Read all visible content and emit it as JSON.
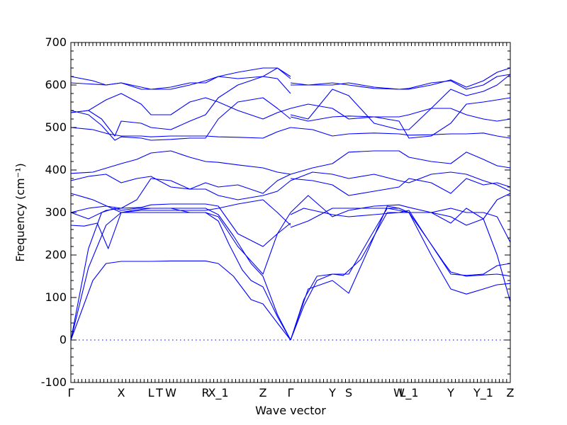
{
  "chart_data": {
    "type": "line",
    "xlabel": "Wave vector",
    "ylabel": "Frequency (cm⁻¹)",
    "ylim": [
      -100,
      700
    ],
    "yticks": [
      -100,
      0,
      100,
      200,
      300,
      400,
      500,
      600,
      700
    ],
    "xlim": [
      0,
      1
    ],
    "grid": false,
    "legend": "none",
    "line_color": "#0000ff",
    "zero_line": {
      "y": 0,
      "style": "dotted"
    },
    "high_symmetry_points": [
      {
        "label": "Γ",
        "x": 0.0
      },
      {
        "label": "X",
        "x": 0.1145
      },
      {
        "label": "L",
        "x": 0.1823
      },
      {
        "label": "T",
        "x": 0.2016
      },
      {
        "label": "W",
        "x": 0.2274
      },
      {
        "label": "R",
        "x": 0.3065
      },
      {
        "label": "X_1",
        "x": 0.3355
      },
      {
        "label": "Z",
        "x": 0.4371
      },
      {
        "label": "Γ",
        "x": 0.5
      },
      {
        "label": "Y",
        "x": 0.5952
      },
      {
        "label": "S",
        "x": 0.6323
      },
      {
        "label": "W",
        "x": 0.7468
      },
      {
        "label": "L_1",
        "x": 0.7694
      },
      {
        "label": "Y",
        "x": 0.8645
      },
      {
        "label": "Y_1",
        "x": 0.9387
      },
      {
        "label": "Z",
        "x": 1.0
      }
    ],
    "series": [
      {
        "x": [
          0,
          0.05,
          0.08,
          0.1145,
          0.15,
          0.1823,
          0.2274,
          0.3065,
          0.3355,
          0.37,
          0.41,
          0.4371,
          0.47,
          0.5
        ],
        "y": [
          0,
          140,
          180,
          185,
          185,
          185,
          186,
          186,
          180,
          150,
          95,
          85,
          40,
          0
        ]
      },
      {
        "x": [
          0,
          0.04,
          0.08,
          0.1145,
          0.16,
          0.1823,
          0.2274,
          0.2707,
          0.3065,
          0.3355,
          0.36,
          0.39,
          0.41,
          0.4371,
          0.47,
          0.5
        ],
        "y": [
          0,
          170,
          270,
          300,
          300,
          300,
          300,
          300,
          300,
          280,
          225,
          165,
          140,
          125,
          55,
          0
        ]
      },
      {
        "x": [
          0,
          0.04,
          0.07,
          0.1,
          0.1145,
          0.15,
          0.1823,
          0.2274,
          0.2707,
          0.3065,
          0.3355,
          0.37,
          0.41,
          0.4371,
          0.47,
          0.5
        ],
        "y": [
          0,
          215,
          300,
          310,
          305,
          310,
          310,
          310,
          310,
          310,
          295,
          245,
          180,
          150,
          60,
          0
        ]
      },
      {
        "x": [
          0.5,
          0.53,
          0.56,
          0.5952,
          0.6323,
          0.68,
          0.72,
          0.7468,
          0.7694,
          0.81,
          0.8645,
          0.9,
          0.9387,
          0.97,
          1.0
        ],
        "y": [
          0,
          95,
          150,
          155,
          155,
          240,
          310,
          305,
          300,
          240,
          155,
          152,
          155,
          175,
          180
        ]
      },
      {
        "x": [
          0.5,
          0.54,
          0.5952,
          0.6323,
          0.68,
          0.72,
          0.7468,
          0.7694,
          0.82,
          0.8645,
          0.9,
          0.9387,
          0.97,
          1.0
        ],
        "y": [
          0,
          120,
          140,
          110,
          220,
          315,
          310,
          300,
          200,
          120,
          108,
          120,
          130,
          133
        ]
      },
      {
        "x": [
          0.5,
          0.53,
          0.56,
          0.5952,
          0.62,
          0.66,
          0.72,
          0.7468,
          0.7694,
          0.81,
          0.85,
          0.8645,
          0.9,
          0.9387,
          0.97,
          0.99,
          1.0
        ],
        "y": [
          0,
          80,
          140,
          155,
          152,
          190,
          300,
          300,
          305,
          240,
          180,
          160,
          150,
          153,
          155,
          152,
          150
        ]
      },
      {
        "x": [
          0,
          0.03,
          0.06,
          0.085,
          0.1145,
          0.16,
          0.1823,
          0.2274,
          0.2707,
          0.3065,
          0.3355,
          0.38,
          0.4371,
          0.47,
          0.5
        ],
        "y": [
          270,
          268,
          275,
          215,
          300,
          305,
          305,
          305,
          305,
          305,
          310,
          320,
          330,
          300,
          270
        ]
      },
      {
        "x": [
          0,
          0.04,
          0.08,
          0.1145,
          0.16,
          0.1823,
          0.2274,
          0.2707,
          0.3065,
          0.3355,
          0.38,
          0.4371,
          0.47,
          0.5
        ],
        "y": [
          300,
          285,
          305,
          310,
          312,
          318,
          320,
          320,
          320,
          315,
          250,
          220,
          250,
          275
        ]
      },
      {
        "x": [
          0,
          0.05,
          0.1145,
          0.14,
          0.1823,
          0.2274,
          0.2707,
          0.3065,
          0.3355,
          0.38,
          0.4371,
          0.47,
          0.5
        ],
        "y": [
          345,
          330,
          300,
          305,
          310,
          310,
          300,
          300,
          290,
          220,
          155,
          250,
          300
        ]
      },
      {
        "x": [
          0.5,
          0.54,
          0.5952,
          0.6323,
          0.69,
          0.7468,
          0.7694,
          0.82,
          0.8645,
          0.9,
          0.9387,
          0.97,
          1.0
        ],
        "y": [
          265,
          280,
          310,
          310,
          310,
          310,
          300,
          300,
          275,
          310,
          285,
          200,
          90
        ]
      },
      {
        "x": [
          0.5,
          0.54,
          0.5952,
          0.6323,
          0.69,
          0.7468,
          0.7694,
          0.82,
          0.8645,
          0.9,
          0.9387,
          0.97,
          1.0
        ],
        "y": [
          300,
          340,
          290,
          305,
          315,
          318,
          312,
          300,
          310,
          300,
          300,
          290,
          230
        ]
      },
      {
        "x": [
          0.5,
          0.53,
          0.5952,
          0.6323,
          0.69,
          0.7468,
          0.7694,
          0.82,
          0.8645,
          0.9,
          0.9387,
          0.97,
          1.0
        ],
        "y": [
          295,
          310,
          295,
          290,
          295,
          300,
          300,
          300,
          290,
          270,
          285,
          330,
          345
        ]
      },
      {
        "x": [
          0,
          0.04,
          0.08,
          0.1145,
          0.15,
          0.1823,
          0.2274,
          0.2707,
          0.3065,
          0.3355,
          0.38,
          0.4371,
          0.47,
          0.5
        ],
        "y": [
          375,
          385,
          390,
          370,
          380,
          385,
          360,
          355,
          355,
          340,
          330,
          340,
          350,
          375
        ]
      },
      {
        "x": [
          0,
          0.04,
          0.08,
          0.1145,
          0.15,
          0.1823,
          0.2274,
          0.2707,
          0.3065,
          0.3355,
          0.38,
          0.4371,
          0.47,
          0.5
        ],
        "y": [
          300,
          310,
          315,
          310,
          330,
          380,
          375,
          355,
          370,
          360,
          365,
          345,
          375,
          390
        ]
      },
      {
        "x": [
          0.5,
          0.55,
          0.5952,
          0.6323,
          0.69,
          0.7468,
          0.7694,
          0.82,
          0.8645,
          0.9,
          0.9387,
          0.97,
          1.0
        ],
        "y": [
          375,
          395,
          390,
          380,
          390,
          375,
          370,
          390,
          395,
          390,
          375,
          365,
          350
        ]
      },
      {
        "x": [
          0.5,
          0.55,
          0.5952,
          0.6323,
          0.69,
          0.7468,
          0.7694,
          0.82,
          0.8645,
          0.9,
          0.9387,
          0.97,
          1.0
        ],
        "y": [
          380,
          375,
          365,
          340,
          350,
          360,
          380,
          370,
          345,
          380,
          365,
          370,
          360
        ]
      },
      {
        "x": [
          0,
          0.05,
          0.1145,
          0.15,
          0.1823,
          0.2274,
          0.2707,
          0.3065,
          0.3355,
          0.38,
          0.4371,
          0.47,
          0.5
        ],
        "y": [
          392,
          395,
          415,
          425,
          440,
          445,
          430,
          420,
          418,
          412,
          405,
          395,
          390
        ]
      },
      {
        "x": [
          0.5,
          0.55,
          0.5952,
          0.6323,
          0.69,
          0.7468,
          0.7694,
          0.82,
          0.8645,
          0.9,
          0.9387,
          0.97,
          1.0
        ],
        "y": [
          390,
          405,
          415,
          442,
          445,
          445,
          430,
          420,
          415,
          442,
          425,
          410,
          405
        ]
      },
      {
        "x": [
          0,
          0.05,
          0.085,
          0.1145,
          0.16,
          0.1823,
          0.2274,
          0.2707,
          0.3065,
          0.3355,
          0.38,
          0.4371,
          0.47,
          0.5
        ],
        "y": [
          500,
          495,
          485,
          480,
          480,
          478,
          480,
          480,
          480,
          478,
          477,
          475,
          490,
          500
        ]
      },
      {
        "x": [
          0.5,
          0.55,
          0.5952,
          0.6323,
          0.69,
          0.7468,
          0.7694,
          0.82,
          0.8645,
          0.9,
          0.9387,
          0.97,
          1.0
        ],
        "y": [
          500,
          495,
          480,
          485,
          487,
          485,
          482,
          483,
          485,
          485,
          487,
          480,
          475
        ]
      },
      {
        "x": [
          0,
          0.04,
          0.07,
          0.1,
          0.1145,
          0.16,
          0.1823,
          0.2274,
          0.2707,
          0.3065,
          0.3355,
          0.38,
          0.4371,
          0.47,
          0.5
        ],
        "y": [
          540,
          530,
          505,
          470,
          478,
          475,
          470,
          472,
          475,
          475,
          520,
          560,
          570,
          545,
          520
        ]
      },
      {
        "x": [
          0,
          0.04,
          0.07,
          0.1,
          0.1145,
          0.16,
          0.1823,
          0.2274,
          0.2707,
          0.3065,
          0.3355,
          0.38,
          0.4371,
          0.47,
          0.5
        ],
        "y": [
          535,
          540,
          520,
          480,
          515,
          510,
          500,
          495,
          515,
          530,
          570,
          600,
          620,
          615,
          580
        ]
      },
      {
        "x": [
          0,
          0.04,
          0.08,
          0.1145,
          0.16,
          0.1823,
          0.2274,
          0.2707,
          0.3065,
          0.3355,
          0.38,
          0.4371,
          0.47,
          0.5
        ],
        "y": [
          535,
          540,
          565,
          580,
          555,
          530,
          530,
          560,
          570,
          560,
          540,
          520,
          535,
          545
        ]
      },
      {
        "x": [
          0,
          0.05,
          0.08,
          0.1145,
          0.16,
          0.1823,
          0.2274,
          0.2707,
          0.3065,
          0.3355,
          0.38,
          0.4371,
          0.47,
          0.5
        ],
        "y": [
          605,
          602,
          600,
          605,
          590,
          590,
          595,
          605,
          605,
          620,
          615,
          620,
          640,
          615
        ]
      },
      {
        "x": [
          0,
          0.05,
          0.08,
          0.1145,
          0.16,
          0.1823,
          0.2274,
          0.2707,
          0.3065,
          0.3355,
          0.38,
          0.4371,
          0.47,
          0.5
        ],
        "y": [
          620,
          610,
          600,
          605,
          595,
          590,
          590,
          600,
          610,
          620,
          630,
          640,
          640,
          620
        ]
      },
      {
        "x": [
          0.5,
          0.54,
          0.5952,
          0.6323,
          0.69,
          0.7468,
          0.7694,
          0.82,
          0.8645,
          0.9,
          0.9387,
          0.97,
          1.0
        ],
        "y": [
          545,
          555,
          545,
          520,
          525,
          525,
          530,
          545,
          545,
          530,
          520,
          515,
          520
        ]
      },
      {
        "x": [
          0.5,
          0.54,
          0.5952,
          0.6323,
          0.69,
          0.7468,
          0.7694,
          0.82,
          0.8645,
          0.9,
          0.9387,
          0.97,
          1.0
        ],
        "y": [
          530,
          520,
          590,
          575,
          510,
          495,
          495,
          545,
          590,
          575,
          585,
          600,
          625
        ]
      },
      {
        "x": [
          0.5,
          0.54,
          0.5952,
          0.6323,
          0.69,
          0.7468,
          0.7694,
          0.82,
          0.8645,
          0.9,
          0.9387,
          0.97,
          1.0
        ],
        "y": [
          525,
          515,
          525,
          527,
          525,
          515,
          475,
          480,
          510,
          555,
          560,
          565,
          570
        ]
      },
      {
        "x": [
          0.5,
          0.54,
          0.5952,
          0.6323,
          0.69,
          0.7468,
          0.7694,
          0.82,
          0.8645,
          0.9,
          0.9387,
          0.97,
          1.0
        ],
        "y": [
          600,
          600,
          605,
          600,
          592,
          590,
          592,
          605,
          610,
          590,
          600,
          620,
          625
        ]
      },
      {
        "x": [
          0.5,
          0.54,
          0.5952,
          0.6323,
          0.69,
          0.7468,
          0.7694,
          0.82,
          0.8645,
          0.9,
          0.9387,
          0.97,
          1.0
        ],
        "y": [
          605,
          600,
          600,
          605,
          595,
          590,
          590,
          600,
          612,
          595,
          610,
          630,
          640
        ]
      }
    ]
  }
}
